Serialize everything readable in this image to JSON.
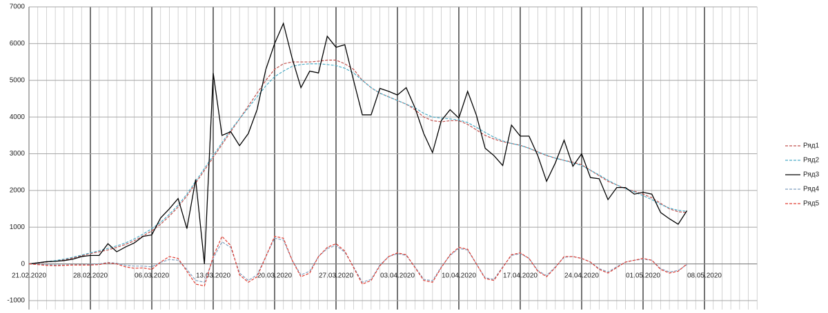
{
  "chart_data": {
    "type": "line",
    "categories": [
      "21.02.2020",
      null,
      null,
      null,
      null,
      null,
      null,
      "28.02.2020",
      null,
      null,
      null,
      null,
      null,
      null,
      "06.03.2020",
      null,
      null,
      null,
      null,
      null,
      null,
      "13.03.2020",
      null,
      null,
      null,
      null,
      null,
      null,
      "20.03.2020",
      null,
      null,
      null,
      null,
      null,
      null,
      "27.03.2020",
      null,
      null,
      null,
      null,
      null,
      null,
      "03.04.2020",
      null,
      null,
      null,
      null,
      null,
      null,
      "10.04.2020",
      null,
      null,
      null,
      null,
      null,
      null,
      "17.04.2020",
      null,
      null,
      null,
      null,
      null,
      null,
      "24.04.2020",
      null,
      null,
      null,
      null,
      null,
      null,
      "01.05.2020",
      null,
      null,
      null,
      null,
      null,
      null,
      "08.05.2020",
      null,
      null,
      null,
      null,
      null,
      null
    ],
    "ylim": [
      -1000,
      7000
    ],
    "yticks": [
      -1000,
      0,
      1000,
      2000,
      3000,
      4000,
      5000,
      6000,
      7000
    ],
    "grid": true,
    "legend": "right",
    "series": [
      {
        "name": "Ряд1",
        "color": "#c0504d",
        "dash": true,
        "values": [
          0,
          20,
          50,
          80,
          110,
          160,
          220,
          280,
          330,
          380,
          450,
          530,
          630,
          760,
          900,
          1080,
          1300,
          1550,
          1850,
          2200,
          2550,
          2900,
          3250,
          3600,
          3950,
          4300,
          4650,
          5000,
          5300,
          5450,
          5500,
          5500,
          5500,
          5520,
          5550,
          5550,
          5450,
          5300,
          5000,
          4800,
          4650,
          4550,
          4450,
          4350,
          4200,
          4000,
          3900,
          3870,
          3900,
          3900,
          3800,
          3650,
          3500,
          3400,
          3330,
          3280,
          3230,
          3150,
          3050,
          2950,
          2880,
          2820,
          2770,
          2700,
          2550,
          2400,
          2250,
          2150,
          2050,
          1980,
          1900,
          1800,
          1650,
          1500,
          1420,
          1400,
          null,
          null,
          null,
          null,
          null,
          null,
          null,
          null
        ]
      },
      {
        "name": "Ряд2",
        "color": "#4bacc6",
        "dash": true,
        "values": [
          0,
          30,
          60,
          90,
          130,
          180,
          240,
          300,
          360,
          420,
          490,
          570,
          680,
          810,
          960,
          1130,
          1350,
          1600,
          1900,
          2250,
          2600,
          2950,
          3300,
          3650,
          3950,
          4250,
          4550,
          4850,
          5100,
          5250,
          5380,
          5430,
          5450,
          5450,
          5430,
          5400,
          5330,
          5200,
          5000,
          4800,
          4650,
          4550,
          4450,
          4350,
          4250,
          4100,
          4000,
          3970,
          3950,
          3920,
          3850,
          3720,
          3580,
          3450,
          3350,
          3280,
          3230,
          3150,
          3050,
          2960,
          2880,
          2820,
          2750,
          2680,
          2550,
          2420,
          2280,
          2150,
          2050,
          1960,
          1860,
          1750,
          1620,
          1520,
          1460,
          1430,
          null,
          null,
          null,
          null,
          null,
          null,
          null,
          null
        ]
      },
      {
        "name": "Ряд3",
        "color": "#000000",
        "dash": false,
        "values": [
          0,
          30,
          60,
          70,
          90,
          130,
          200,
          230,
          230,
          550,
          330,
          460,
          570,
          750,
          790,
          1250,
          1500,
          1780,
          960,
          2300,
          0,
          5200,
          3500,
          3600,
          3220,
          3550,
          4200,
          5300,
          6000,
          6550,
          5600,
          4800,
          5250,
          5200,
          6200,
          5900,
          5970,
          5000,
          4060,
          4060,
          4780,
          4700,
          4600,
          4800,
          4250,
          3550,
          3030,
          3900,
          4200,
          3970,
          4700,
          4050,
          3150,
          2950,
          2680,
          3780,
          3480,
          3480,
          2950,
          2250,
          2750,
          3370,
          2660,
          3000,
          2350,
          2320,
          1750,
          2080,
          2080,
          1900,
          1950,
          1900,
          1400,
          1230,
          1080,
          1450,
          null,
          null,
          null,
          null,
          null,
          null,
          null,
          null
        ]
      },
      {
        "name": "Ряд4",
        "color": "#7f9fbf",
        "dash": true,
        "values": [
          0,
          -10,
          -20,
          -30,
          -30,
          -20,
          -20,
          -10,
          0,
          40,
          20,
          -40,
          -60,
          -60,
          -80,
          40,
          120,
          100,
          -150,
          -450,
          -500,
          150,
          600,
          450,
          -250,
          -450,
          -300,
          200,
          700,
          650,
          100,
          -300,
          -200,
          200,
          420,
          500,
          320,
          -80,
          -500,
          -420,
          -30,
          200,
          280,
          230,
          -80,
          -420,
          -460,
          -80,
          230,
          420,
          380,
          0,
          -380,
          -420,
          -80,
          230,
          280,
          150,
          -180,
          -320,
          -80,
          180,
          200,
          150,
          50,
          -130,
          -220,
          -80,
          50,
          100,
          130,
          100,
          -130,
          -220,
          -180,
          -20,
          null,
          null,
          null,
          null,
          null,
          null,
          null,
          null
        ]
      },
      {
        "name": "Ряд5",
        "color": "#e03c31",
        "dash": true,
        "values": [
          0,
          -20,
          -40,
          -50,
          -40,
          -30,
          -30,
          -30,
          -20,
          30,
          0,
          -80,
          -120,
          -110,
          -150,
          50,
          200,
          150,
          -200,
          -550,
          -600,
          200,
          750,
          500,
          -300,
          -500,
          -350,
          200,
          750,
          700,
          100,
          -350,
          -250,
          200,
          450,
          550,
          350,
          -100,
          -550,
          -450,
          -50,
          200,
          300,
          250,
          -100,
          -450,
          -500,
          -100,
          250,
          450,
          400,
          0,
          -400,
          -450,
          -100,
          250,
          300,
          150,
          -200,
          -350,
          -100,
          200,
          200,
          150,
          50,
          -150,
          -250,
          -100,
          50,
          100,
          150,
          100,
          -150,
          -250,
          -200,
          0,
          null,
          null,
          null,
          null,
          null,
          null,
          null,
          null
        ]
      }
    ]
  }
}
